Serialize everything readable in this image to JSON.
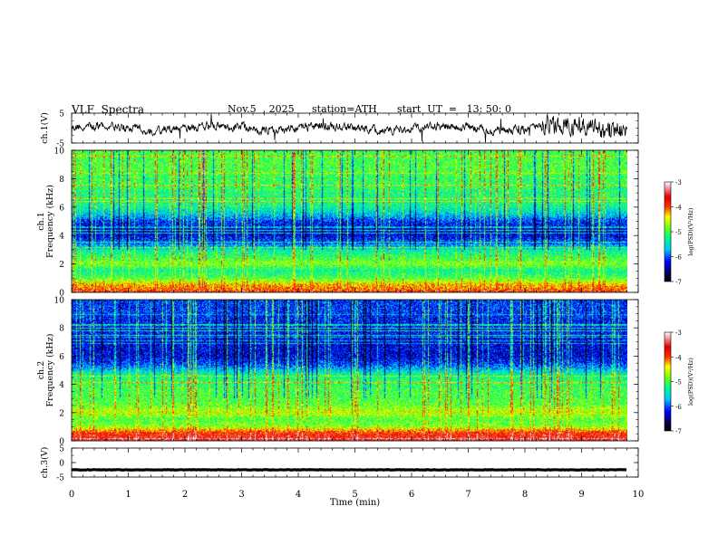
{
  "header": {
    "title": "VLF  Spectra",
    "date": "Nov.5  , 2025",
    "station": "station=ATH",
    "start_time": "start  UT  =   13: 50: 0"
  },
  "chart_data": [
    {
      "type": "line",
      "name": "ch1-waveform",
      "ylabel": "ch.1(V)",
      "ylim": [
        -5,
        5
      ],
      "yticks": [
        "5",
        "-5"
      ],
      "xlim": [
        0,
        10
      ],
      "description_values": "noisy oscillating waveform, roughly -3..3 V, larger excursions after 8.3 min"
    },
    {
      "type": "heatmap",
      "name": "ch1-spectrogram",
      "ylabel_top": "ch.1",
      "ylabel": "Frequency  (kHz)",
      "ylim": [
        0,
        10
      ],
      "yticks": [
        "0",
        "2",
        "4",
        "6",
        "8",
        "10"
      ],
      "xlim": [
        0,
        10
      ],
      "data_end_min": 9.8,
      "band_profile_freq_khz": [
        0,
        0.5,
        1,
        1.5,
        2,
        2.5,
        3,
        3.5,
        4,
        4.5,
        5,
        5.5,
        6,
        6.5,
        7,
        7.5,
        8,
        8.5,
        9,
        9.5,
        10
      ],
      "band_profile_log_psd": [
        -4.0,
        -4.3,
        -5.0,
        -5.3,
        -4.8,
        -5.1,
        -5.4,
        -6.0,
        -6.3,
        -6.3,
        -6.1,
        -5.6,
        -5.3,
        -5.2,
        -5.2,
        -5.1,
        -5.1,
        -5.0,
        -5.0,
        -5.0,
        -5.0
      ],
      "colorbar": {
        "label": "log(PSD)(V²/Hz)",
        "ticks": [
          "-3",
          "-4",
          "-5",
          "-6",
          "-7"
        ],
        "range": [
          -7,
          -3
        ]
      }
    },
    {
      "type": "heatmap",
      "name": "ch2-spectrogram",
      "ylabel_top": "ch.2",
      "ylabel": "Frequency  (kHz)",
      "ylim": [
        0,
        10
      ],
      "yticks": [
        "0",
        "2",
        "4",
        "6",
        "8",
        "10"
      ],
      "xlim": [
        0,
        10
      ],
      "data_end_min": 9.8,
      "band_profile_freq_khz": [
        0,
        0.5,
        1,
        1.5,
        2,
        2.5,
        3,
        3.5,
        4,
        4.5,
        5,
        5.5,
        6,
        6.5,
        7,
        7.5,
        8,
        8.5,
        9,
        9.5,
        10
      ],
      "band_profile_log_psd": [
        -3.6,
        -3.8,
        -4.8,
        -5.0,
        -4.6,
        -4.9,
        -5.0,
        -5.0,
        -5.1,
        -5.2,
        -5.6,
        -6.1,
        -6.3,
        -6.3,
        -6.3,
        -6.2,
        -6.2,
        -6.2,
        -6.1,
        -6.1,
        -6.1
      ],
      "colorbar": {
        "label": "log(PSD)(V²/Hz)",
        "ticks": [
          "-3",
          "-4",
          "-5",
          "-6",
          "-7"
        ],
        "range": [
          -7,
          -3
        ]
      }
    },
    {
      "type": "line",
      "name": "ch3-waveform",
      "ylabel": "ch.3(V)",
      "ylim": [
        -5,
        5
      ],
      "yticks": [
        "5",
        "0",
        "-5"
      ],
      "xlim": [
        0,
        10
      ],
      "xlabel": "Time  (min)",
      "xticks": [
        "0",
        "1",
        "2",
        "3",
        "4",
        "5",
        "6",
        "7",
        "8",
        "9",
        "10"
      ],
      "level_v": -2.5
    }
  ]
}
